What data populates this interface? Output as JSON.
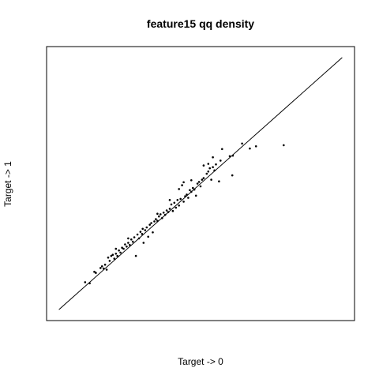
{
  "chart_data": {
    "type": "scatter",
    "title": "feature15 qq density",
    "xlabel": "Target -> 0",
    "ylabel": "Target -> 1",
    "xlim": [
      0,
      1
    ],
    "ylim": [
      0,
      1
    ],
    "grid": false,
    "axes_ticks": false,
    "reference_line": {
      "from": [
        0.04,
        0.04
      ],
      "to": [
        0.96,
        0.96
      ]
    },
    "points": [
      [
        0.125,
        0.14
      ],
      [
        0.14,
        0.136
      ],
      [
        0.155,
        0.178
      ],
      [
        0.16,
        0.174
      ],
      [
        0.175,
        0.192
      ],
      [
        0.18,
        0.198
      ],
      [
        0.185,
        0.19
      ],
      [
        0.19,
        0.204
      ],
      [
        0.195,
        0.186
      ],
      [
        0.2,
        0.23
      ],
      [
        0.205,
        0.218
      ],
      [
        0.21,
        0.236
      ],
      [
        0.215,
        0.24
      ],
      [
        0.22,
        0.226
      ],
      [
        0.225,
        0.244
      ],
      [
        0.23,
        0.236
      ],
      [
        0.235,
        0.256
      ],
      [
        0.24,
        0.248
      ],
      [
        0.245,
        0.266
      ],
      [
        0.25,
        0.262
      ],
      [
        0.255,
        0.278
      ],
      [
        0.26,
        0.27
      ],
      [
        0.265,
        0.284
      ],
      [
        0.27,
        0.276
      ],
      [
        0.275,
        0.296
      ],
      [
        0.28,
        0.288
      ],
      [
        0.285,
        0.304
      ],
      [
        0.29,
        0.236
      ],
      [
        0.295,
        0.314
      ],
      [
        0.3,
        0.3
      ],
      [
        0.305,
        0.324
      ],
      [
        0.31,
        0.316
      ],
      [
        0.315,
        0.284
      ],
      [
        0.32,
        0.33
      ],
      [
        0.325,
        0.34
      ],
      [
        0.33,
        0.306
      ],
      [
        0.335,
        0.35
      ],
      [
        0.34,
        0.356
      ],
      [
        0.345,
        0.322
      ],
      [
        0.35,
        0.362
      ],
      [
        0.355,
        0.37
      ],
      [
        0.36,
        0.364
      ],
      [
        0.365,
        0.38
      ],
      [
        0.37,
        0.388
      ],
      [
        0.375,
        0.374
      ],
      [
        0.38,
        0.394
      ],
      [
        0.385,
        0.386
      ],
      [
        0.39,
        0.402
      ],
      [
        0.395,
        0.396
      ],
      [
        0.4,
        0.408
      ],
      [
        0.405,
        0.424
      ],
      [
        0.41,
        0.4
      ],
      [
        0.415,
        0.43
      ],
      [
        0.42,
        0.412
      ],
      [
        0.425,
        0.44
      ],
      [
        0.43,
        0.42
      ],
      [
        0.435,
        0.444
      ],
      [
        0.44,
        0.494
      ],
      [
        0.445,
        0.434
      ],
      [
        0.45,
        0.454
      ],
      [
        0.455,
        0.46
      ],
      [
        0.46,
        0.448
      ],
      [
        0.465,
        0.476
      ],
      [
        0.47,
        0.47
      ],
      [
        0.475,
        0.484
      ],
      [
        0.48,
        0.478
      ],
      [
        0.485,
        0.456
      ],
      [
        0.49,
        0.5
      ],
      [
        0.495,
        0.506
      ],
      [
        0.5,
        0.49
      ],
      [
        0.505,
        0.514
      ],
      [
        0.51,
        0.52
      ],
      [
        0.52,
        0.536
      ],
      [
        0.525,
        0.544
      ],
      [
        0.53,
        0.556
      ],
      [
        0.535,
        0.514
      ],
      [
        0.54,
        0.56
      ],
      [
        0.545,
        0.548
      ],
      [
        0.55,
        0.57
      ],
      [
        0.56,
        0.508
      ],
      [
        0.565,
        0.584
      ],
      [
        0.525,
        0.572
      ],
      [
        0.51,
        0.566
      ],
      [
        0.54,
        0.596
      ],
      [
        0.595,
        0.6
      ],
      [
        0.605,
        0.602
      ],
      [
        0.635,
        0.646
      ],
      [
        0.66,
        0.628
      ],
      [
        0.68,
        0.636
      ],
      [
        0.57,
        0.626
      ],
      [
        0.47,
        0.512
      ],
      [
        0.445,
        0.505
      ],
      [
        0.43,
        0.48
      ],
      [
        0.4,
        0.44
      ],
      [
        0.36,
        0.39
      ],
      [
        0.312,
        0.335
      ],
      [
        0.265,
        0.3
      ],
      [
        0.225,
        0.262
      ],
      [
        0.603,
        0.53
      ],
      [
        0.77,
        0.64
      ]
    ]
  }
}
